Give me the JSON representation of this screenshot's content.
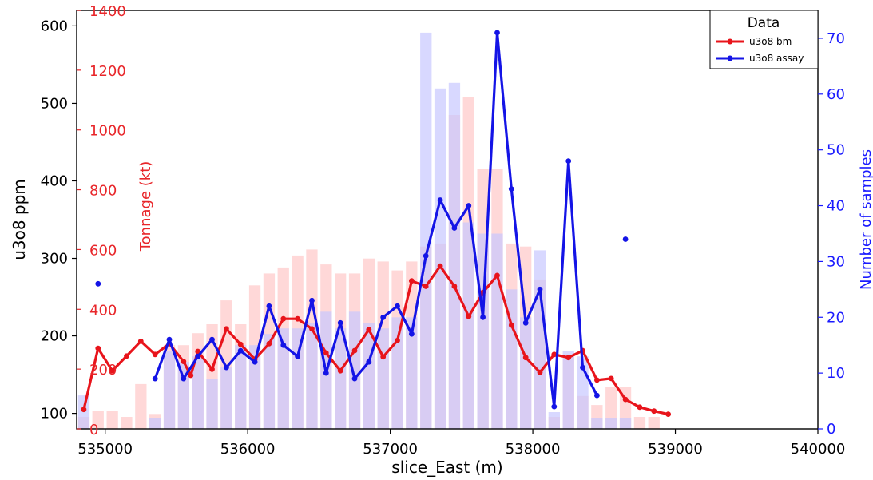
{
  "chart_data": {
    "type": "line",
    "xlabel": "slice_East (m)",
    "xlim": [
      534800,
      540000
    ],
    "xticks": [
      535000,
      536000,
      537000,
      538000,
      539000,
      540000
    ],
    "axes": {
      "left_outer": {
        "label": "u3o8 ppm",
        "ylim": [
          80,
          620
        ],
        "ticks": [
          100,
          200,
          300,
          400,
          500,
          600
        ],
        "color": "#000000"
      },
      "left_inner": {
        "label": "Tonnage (kt)",
        "ylim": [
          0,
          1400
        ],
        "ticks": [
          0,
          200,
          400,
          600,
          800,
          1000,
          1200,
          1400
        ],
        "color": "#e8262a"
      },
      "right": {
        "label": "Number of samples",
        "ylim": [
          0,
          75
        ],
        "ticks": [
          0,
          10,
          20,
          30,
          40,
          50,
          60,
          70
        ],
        "color": "#1a1aff"
      }
    },
    "legend": {
      "title": "Data",
      "position": "top-right",
      "entries": [
        {
          "label": "u3o8 bm",
          "color": "#e8141b"
        },
        {
          "label": "u3o8 assay",
          "color": "#1414e6"
        }
      ]
    },
    "bar_x": [
      534850,
      534950,
      535050,
      535150,
      535250,
      535350,
      535450,
      535550,
      535650,
      535750,
      535850,
      535950,
      536050,
      536150,
      536250,
      536350,
      536450,
      536550,
      536650,
      536750,
      536850,
      536950,
      537050,
      537150,
      537250,
      537350,
      537450,
      537550,
      537650,
      537750,
      537850,
      537950,
      538050,
      538150,
      538250,
      538350,
      538450,
      538550,
      538650,
      538750,
      538850
    ],
    "series": [
      {
        "name": "u3o8 bm",
        "axis": "left_outer",
        "color": "#e8141b",
        "x": [
          534850,
          534950,
          535050,
          535150,
          535250,
          535350,
          535450,
          535550,
          535600,
          535650,
          535750,
          535850,
          535950,
          536050,
          536150,
          536250,
          536350,
          536450,
          536550,
          536650,
          536750,
          536850,
          536950,
          537050,
          537150,
          537250,
          537350,
          537450,
          537550,
          537650,
          537750,
          537850,
          537950,
          538050,
          538150,
          538250,
          538350,
          538450,
          538550,
          538650,
          538750,
          538850,
          538950
        ],
        "y": [
          105,
          184,
          155,
          174,
          193,
          176,
          190,
          167,
          149,
          180,
          157,
          209,
          189,
          170,
          190,
          222,
          222,
          209,
          178,
          155,
          181,
          208,
          173,
          194,
          271,
          264,
          290,
          264,
          225,
          256,
          278,
          214,
          172,
          153,
          176,
          172,
          181,
          143,
          145,
          118,
          108,
          103,
          99
        ]
      },
      {
        "name": "u3o8 assay",
        "axis": "right",
        "color": "#1414e6",
        "x": [
          535350,
          535450,
          535550,
          535650,
          535750,
          535850,
          535950,
          536050,
          536150,
          536250,
          536350,
          536450,
          536550,
          536650,
          536750,
          536850,
          536950,
          537050,
          537150,
          537250,
          537350,
          537450,
          537550,
          537650,
          537750,
          537850,
          537950,
          538050,
          538150,
          538250,
          538350,
          538450
        ],
        "y": [
          9,
          16,
          9,
          13,
          16,
          11,
          14,
          12,
          22,
          15,
          13,
          23,
          10,
          19,
          9,
          12,
          20,
          22,
          17,
          31,
          41,
          36,
          40,
          20,
          71,
          43,
          19,
          25,
          4,
          48,
          11,
          6
        ]
      },
      {
        "name": "u3o8 assay isolated",
        "axis": "right",
        "color": "#1414e6",
        "style": "points",
        "x": [
          534950,
          538650
        ],
        "y": [
          26,
          34
        ]
      },
      {
        "name": "Tonnage (kt)",
        "axis": "left_inner",
        "type": "bar",
        "color": "#ffc8c8",
        "values": [
          40,
          60,
          60,
          40,
          150,
          50,
          280,
          280,
          320,
          350,
          430,
          350,
          480,
          520,
          540,
          580,
          600,
          550,
          520,
          520,
          570,
          560,
          530,
          560,
          610,
          620,
          1050,
          1110,
          870,
          870,
          620,
          610,
          500,
          40,
          240,
          110,
          80,
          140,
          140,
          40,
          40
        ]
      },
      {
        "name": "Number of samples",
        "axis": "right",
        "type": "bar",
        "color": "#c8c8ff",
        "values": [
          6,
          0,
          0,
          0,
          0,
          2,
          14,
          12,
          13,
          9,
          11,
          15,
          15,
          17,
          18,
          18,
          19,
          21,
          18,
          21,
          19,
          18,
          20,
          20,
          71,
          61,
          62,
          37,
          35,
          35,
          25,
          20,
          32,
          3,
          14,
          13,
          2,
          2,
          2,
          0,
          0
        ]
      }
    ]
  }
}
